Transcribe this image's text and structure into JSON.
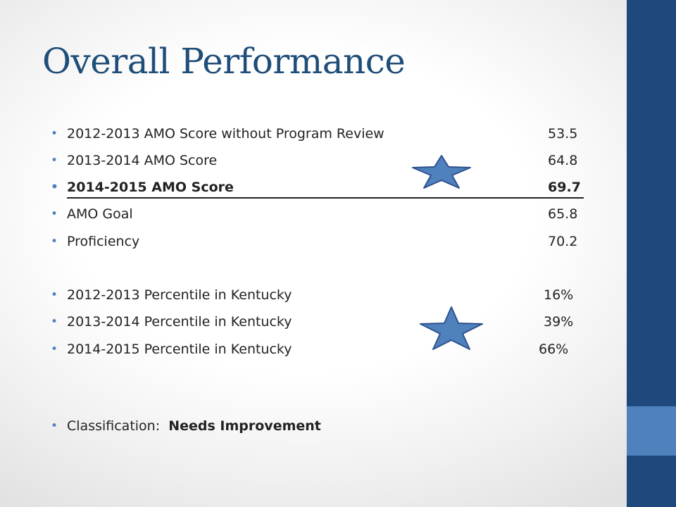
{
  "slide": {
    "title": "Overall Performance",
    "bullet_char": "•",
    "amo_items": [
      {
        "label": "2012-2013 AMO Score without Program Review",
        "value": "53.5",
        "emphasized": false
      },
      {
        "label": "2013-2014 AMO Score",
        "value": "64.8",
        "emphasized": false
      },
      {
        "label": "2014-2015 AMO Score",
        "value": "69.7",
        "emphasized": true
      },
      {
        "label": "AMO Goal",
        "value": "65.8",
        "emphasized": false
      },
      {
        "label": "Proficiency",
        "value": "70.2",
        "emphasized": false
      }
    ],
    "percentile_items": [
      {
        "label": "2012-2013 Percentile in Kentucky",
        "value": "16%"
      },
      {
        "label": "2013-2014 Percentile in Kentucky",
        "value": "39%"
      },
      {
        "label": "2014-2015 Percentile in Kentucky",
        "value": "66%"
      }
    ],
    "classification": {
      "lead": "Classification:",
      "value": "Needs Improvement"
    }
  },
  "colors": {
    "title": "#1f4e79",
    "bullet": "#4f81bd",
    "sidebar_dark": "#1f497d",
    "sidebar_light": "#4f81bd",
    "star_fill": "#4f81bd",
    "star_stroke": "#2f528f"
  },
  "icons": {
    "highlight": "star-icon"
  }
}
